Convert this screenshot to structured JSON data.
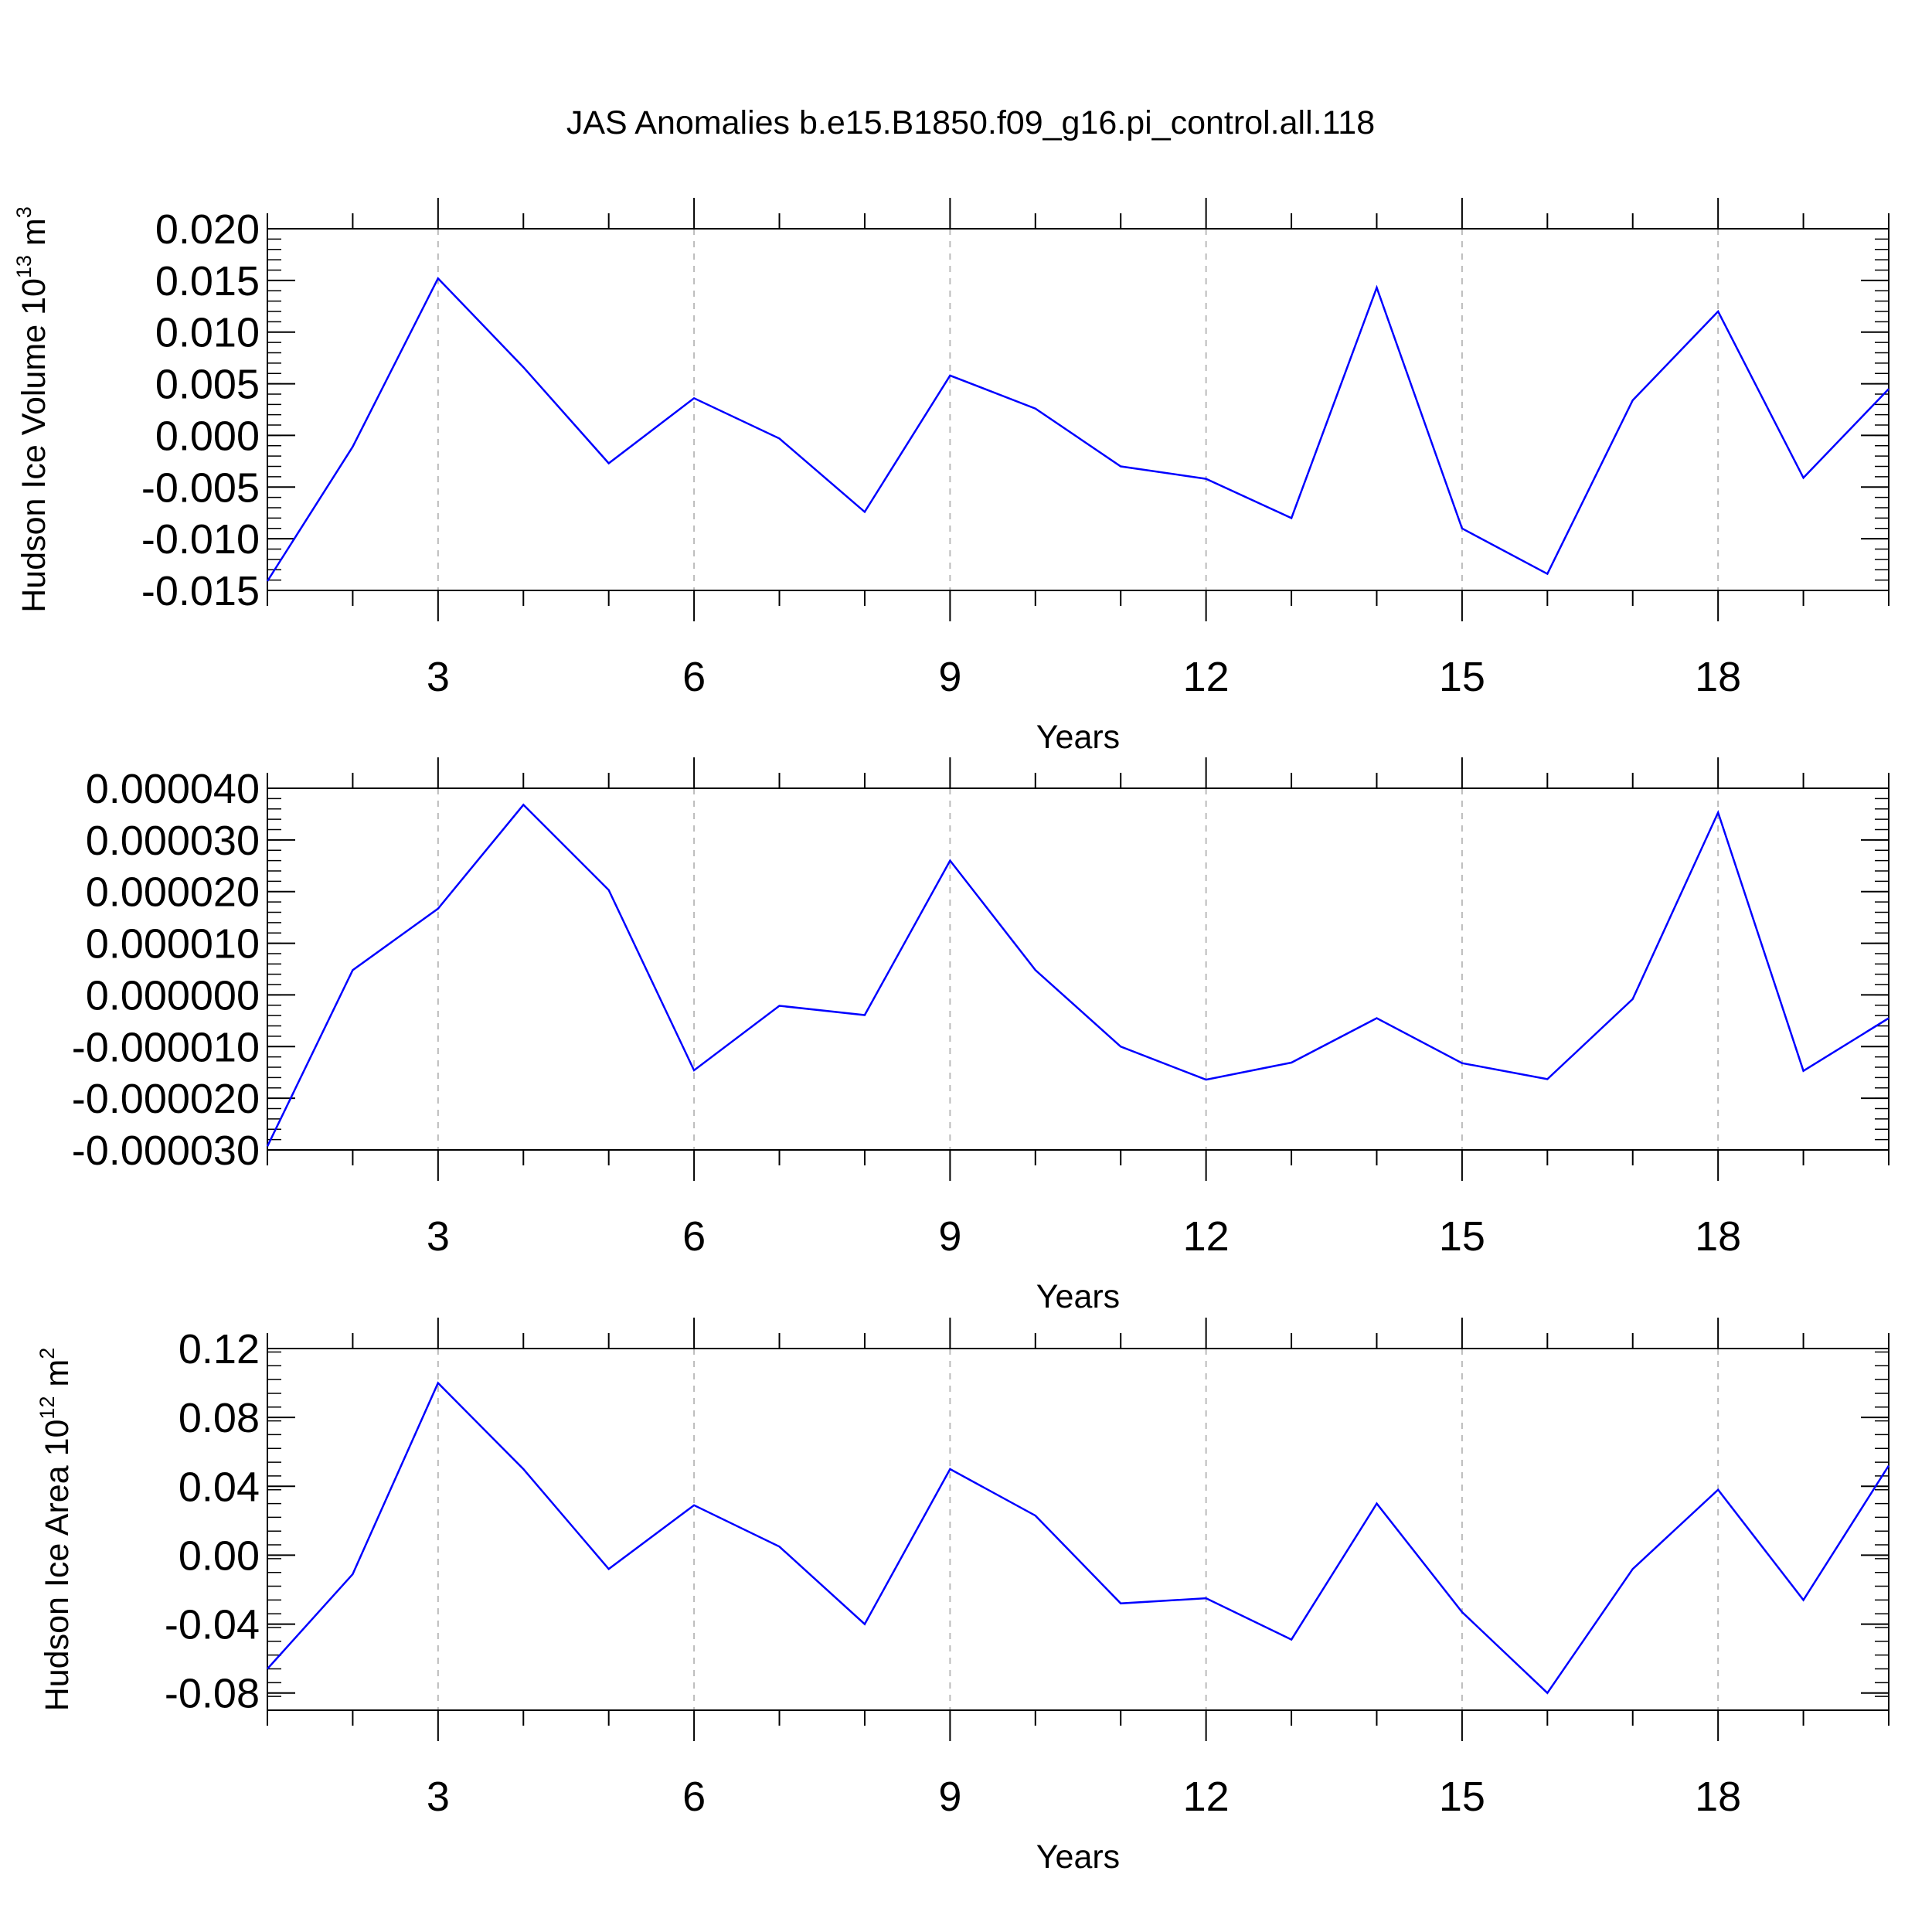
{
  "title": "JAS Anomalies b.e15.B1850.f09_g16.pi_control.all.118",
  "colors": {
    "line": "#0000ff",
    "grid": "#bbbbbb",
    "axis": "#000000"
  },
  "chart_data": [
    {
      "type": "line",
      "xlabel": "Years",
      "ylabel": {
        "text": "Hudson Ice Volume 10",
        "sup": "13",
        "unit": " m",
        "unit_sup": "3"
      },
      "xlim": [
        1,
        20
      ],
      "ylim": [
        -0.015,
        0.02
      ],
      "x_ticks": [
        3,
        6,
        9,
        12,
        15,
        18
      ],
      "x_tick_labels": [
        "3",
        "6",
        "9",
        "12",
        "15",
        "18"
      ],
      "y_ticks": [
        -0.015,
        -0.01,
        -0.005,
        0.0,
        0.005,
        0.01,
        0.015,
        0.02
      ],
      "y_tick_labels": [
        "-0.015",
        "-0.010",
        "-0.005",
        "0.000",
        "0.005",
        "0.010",
        "0.015",
        "0.020"
      ],
      "y_minor_step": 0.001,
      "grid": "x-major-dashed",
      "x": [
        1,
        2,
        3,
        4,
        5,
        6,
        7,
        8,
        9,
        10,
        11,
        12,
        13,
        14,
        15,
        16,
        17,
        18,
        19,
        20
      ],
      "values": [
        -0.0141,
        -0.0011,
        0.0152,
        0.0066,
        -0.0027,
        0.0036,
        -0.0003,
        -0.0074,
        0.0058,
        0.0026,
        -0.003,
        -0.0042,
        -0.008,
        0.0143,
        -0.009,
        -0.0134,
        0.0034,
        0.012,
        -0.0041,
        0.0045
      ]
    },
    {
      "type": "line",
      "xlabel": "Years",
      "xlim": [
        1,
        20
      ],
      "ylim": [
        -3e-05,
        4e-05
      ],
      "x_ticks": [
        3,
        6,
        9,
        12,
        15,
        18
      ],
      "x_tick_labels": [
        "3",
        "6",
        "9",
        "12",
        "15",
        "18"
      ],
      "y_ticks": [
        -3e-05,
        -2e-05,
        -1e-05,
        0.0,
        1e-05,
        2e-05,
        3e-05,
        4e-05
      ],
      "y_tick_labels": [
        "-0.000030",
        "-0.000020",
        "-0.000010",
        "0.000000",
        "0.000010",
        "0.000020",
        "0.000030",
        "0.000040"
      ],
      "y_minor_step": 2e-06,
      "grid": "x-major-dashed",
      "x": [
        1,
        2,
        3,
        4,
        5,
        6,
        7,
        8,
        9,
        10,
        11,
        12,
        13,
        14,
        15,
        16,
        17,
        18,
        19,
        20
      ],
      "values": [
        -2.93e-05,
        4.8e-06,
        1.67e-05,
        3.68e-05,
        2.03e-05,
        -1.46e-05,
        -2.1e-06,
        -3.9e-06,
        2.6e-05,
        4.8e-06,
        -1e-05,
        -1.64e-05,
        -1.31e-05,
        -4.5e-06,
        -1.32e-05,
        -1.63e-05,
        -8e-07,
        3.53e-05,
        -1.47e-05,
        -4.5e-06
      ]
    },
    {
      "type": "line",
      "xlabel": "Years",
      "ylabel": {
        "text": "Hudson Ice Area 10",
        "sup": "12",
        "unit": " m",
        "unit_sup": "2"
      },
      "xlim": [
        1,
        20
      ],
      "ylim": [
        -0.09,
        0.12
      ],
      "x_ticks": [
        3,
        6,
        9,
        12,
        15,
        18
      ],
      "x_tick_labels": [
        "3",
        "6",
        "9",
        "12",
        "15",
        "18"
      ],
      "y_ticks": [
        -0.08,
        -0.04,
        0.0,
        0.04,
        0.08,
        0.12
      ],
      "y_tick_labels": [
        "-0.08",
        "-0.04",
        "0.00",
        "0.04",
        "0.08",
        "0.12"
      ],
      "y_minor_step": 0.008,
      "grid": "x-major-dashed",
      "x": [
        1,
        2,
        3,
        4,
        5,
        6,
        7,
        8,
        9,
        10,
        11,
        12,
        13,
        14,
        15,
        16,
        17,
        18,
        19,
        20
      ],
      "values": [
        -0.066,
        -0.011,
        0.1,
        0.05,
        -0.008,
        0.029,
        0.005,
        -0.04,
        0.05,
        0.023,
        -0.028,
        -0.025,
        -0.049,
        0.03,
        -0.033,
        -0.08,
        -0.008,
        0.038,
        -0.026,
        0.052
      ]
    }
  ]
}
